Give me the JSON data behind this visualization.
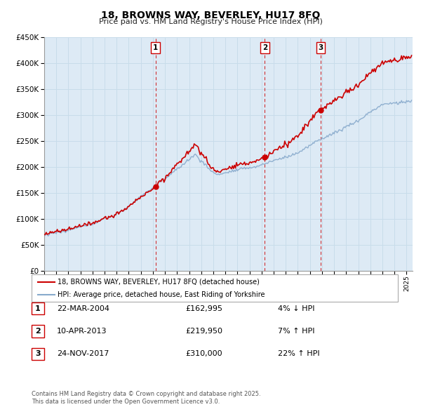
{
  "title": "18, BROWNS WAY, BEVERLEY, HU17 8FQ",
  "subtitle": "Price paid vs. HM Land Registry's House Price Index (HPI)",
  "legend_line1": "18, BROWNS WAY, BEVERLEY, HU17 8FQ (detached house)",
  "legend_line2": "HPI: Average price, detached house, East Riding of Yorkshire",
  "footer1": "Contains HM Land Registry data © Crown copyright and database right 2025.",
  "footer2": "This data is licensed under the Open Government Licence v3.0.",
  "table_rows": [
    {
      "num": "1",
      "date": "22-MAR-2004",
      "price": "£162,995",
      "info": "4% ↓ HPI"
    },
    {
      "num": "2",
      "date": "10-APR-2013",
      "price": "£219,950",
      "info": "7% ↑ HPI"
    },
    {
      "num": "3",
      "date": "24-NOV-2017",
      "price": "£310,000",
      "info": "22% ↑ HPI"
    }
  ],
  "sale_years": [
    2004.22,
    2013.27,
    2017.9
  ],
  "sale_prices": [
    162995,
    219950,
    310000
  ],
  "vline_labels": [
    "1",
    "2",
    "3"
  ],
  "xmin": 1995,
  "xmax": 2025.5,
  "ymin": 0,
  "ymax": 450000,
  "yticks": [
    0,
    50000,
    100000,
    150000,
    200000,
    250000,
    300000,
    350000,
    400000,
    450000
  ],
  "red_color": "#cc0000",
  "blue_color": "#88aacc",
  "grid_color": "#c8dcea",
  "bg_color": "#ddeaf5"
}
